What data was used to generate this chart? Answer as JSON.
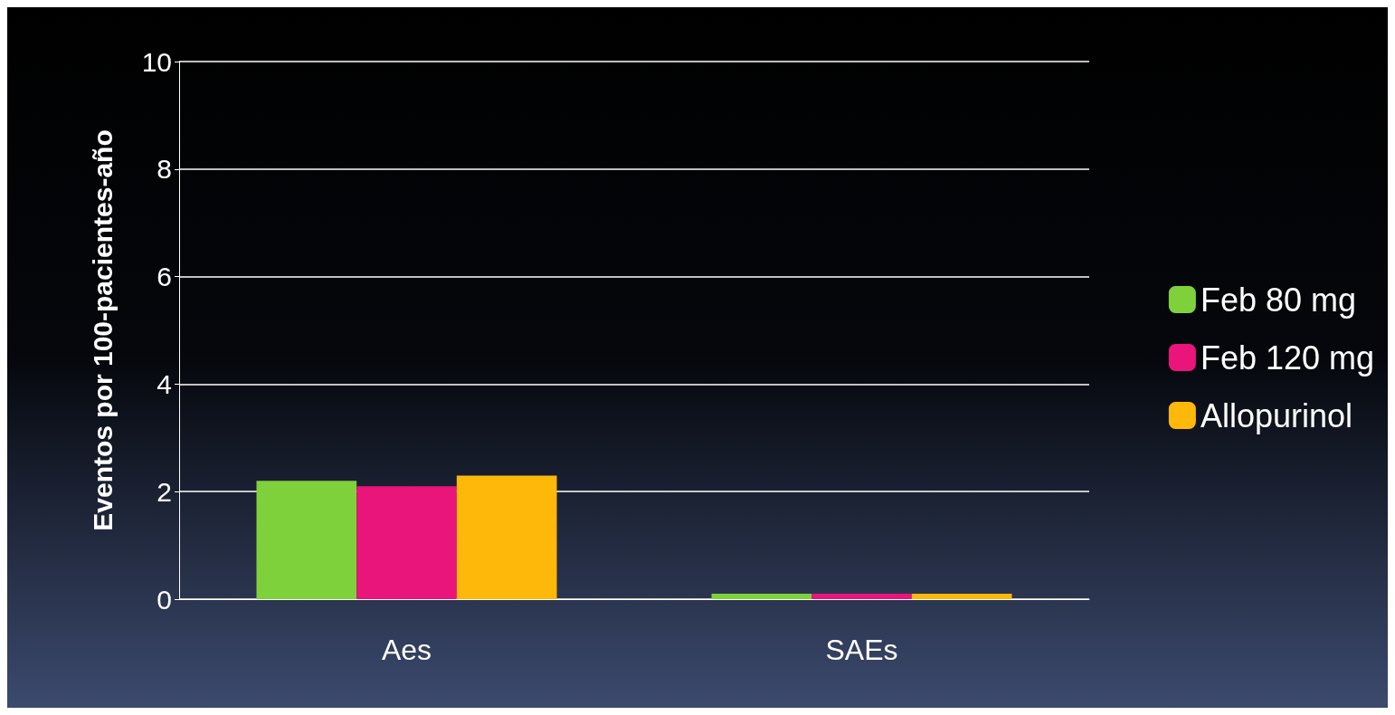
{
  "chart_data": {
    "type": "bar",
    "ylabel": "Eventos por 100-pacientes-año",
    "categories": [
      "Aes",
      "SAEs"
    ],
    "series": [
      {
        "name": "Feb 80 mg",
        "color": "#7fd13b",
        "values": [
          2.2,
          0.1
        ]
      },
      {
        "name": "Feb 120 mg",
        "color": "#ea157a",
        "values": [
          2.1,
          0.1
        ]
      },
      {
        "name": "Allopurinol",
        "color": "#feb80a",
        "values": [
          2.3,
          0.1
        ]
      }
    ],
    "ylim": [
      0,
      10
    ],
    "yticks": [
      0,
      2,
      4,
      6,
      8,
      10
    ],
    "grid": "y",
    "legend": "right"
  }
}
